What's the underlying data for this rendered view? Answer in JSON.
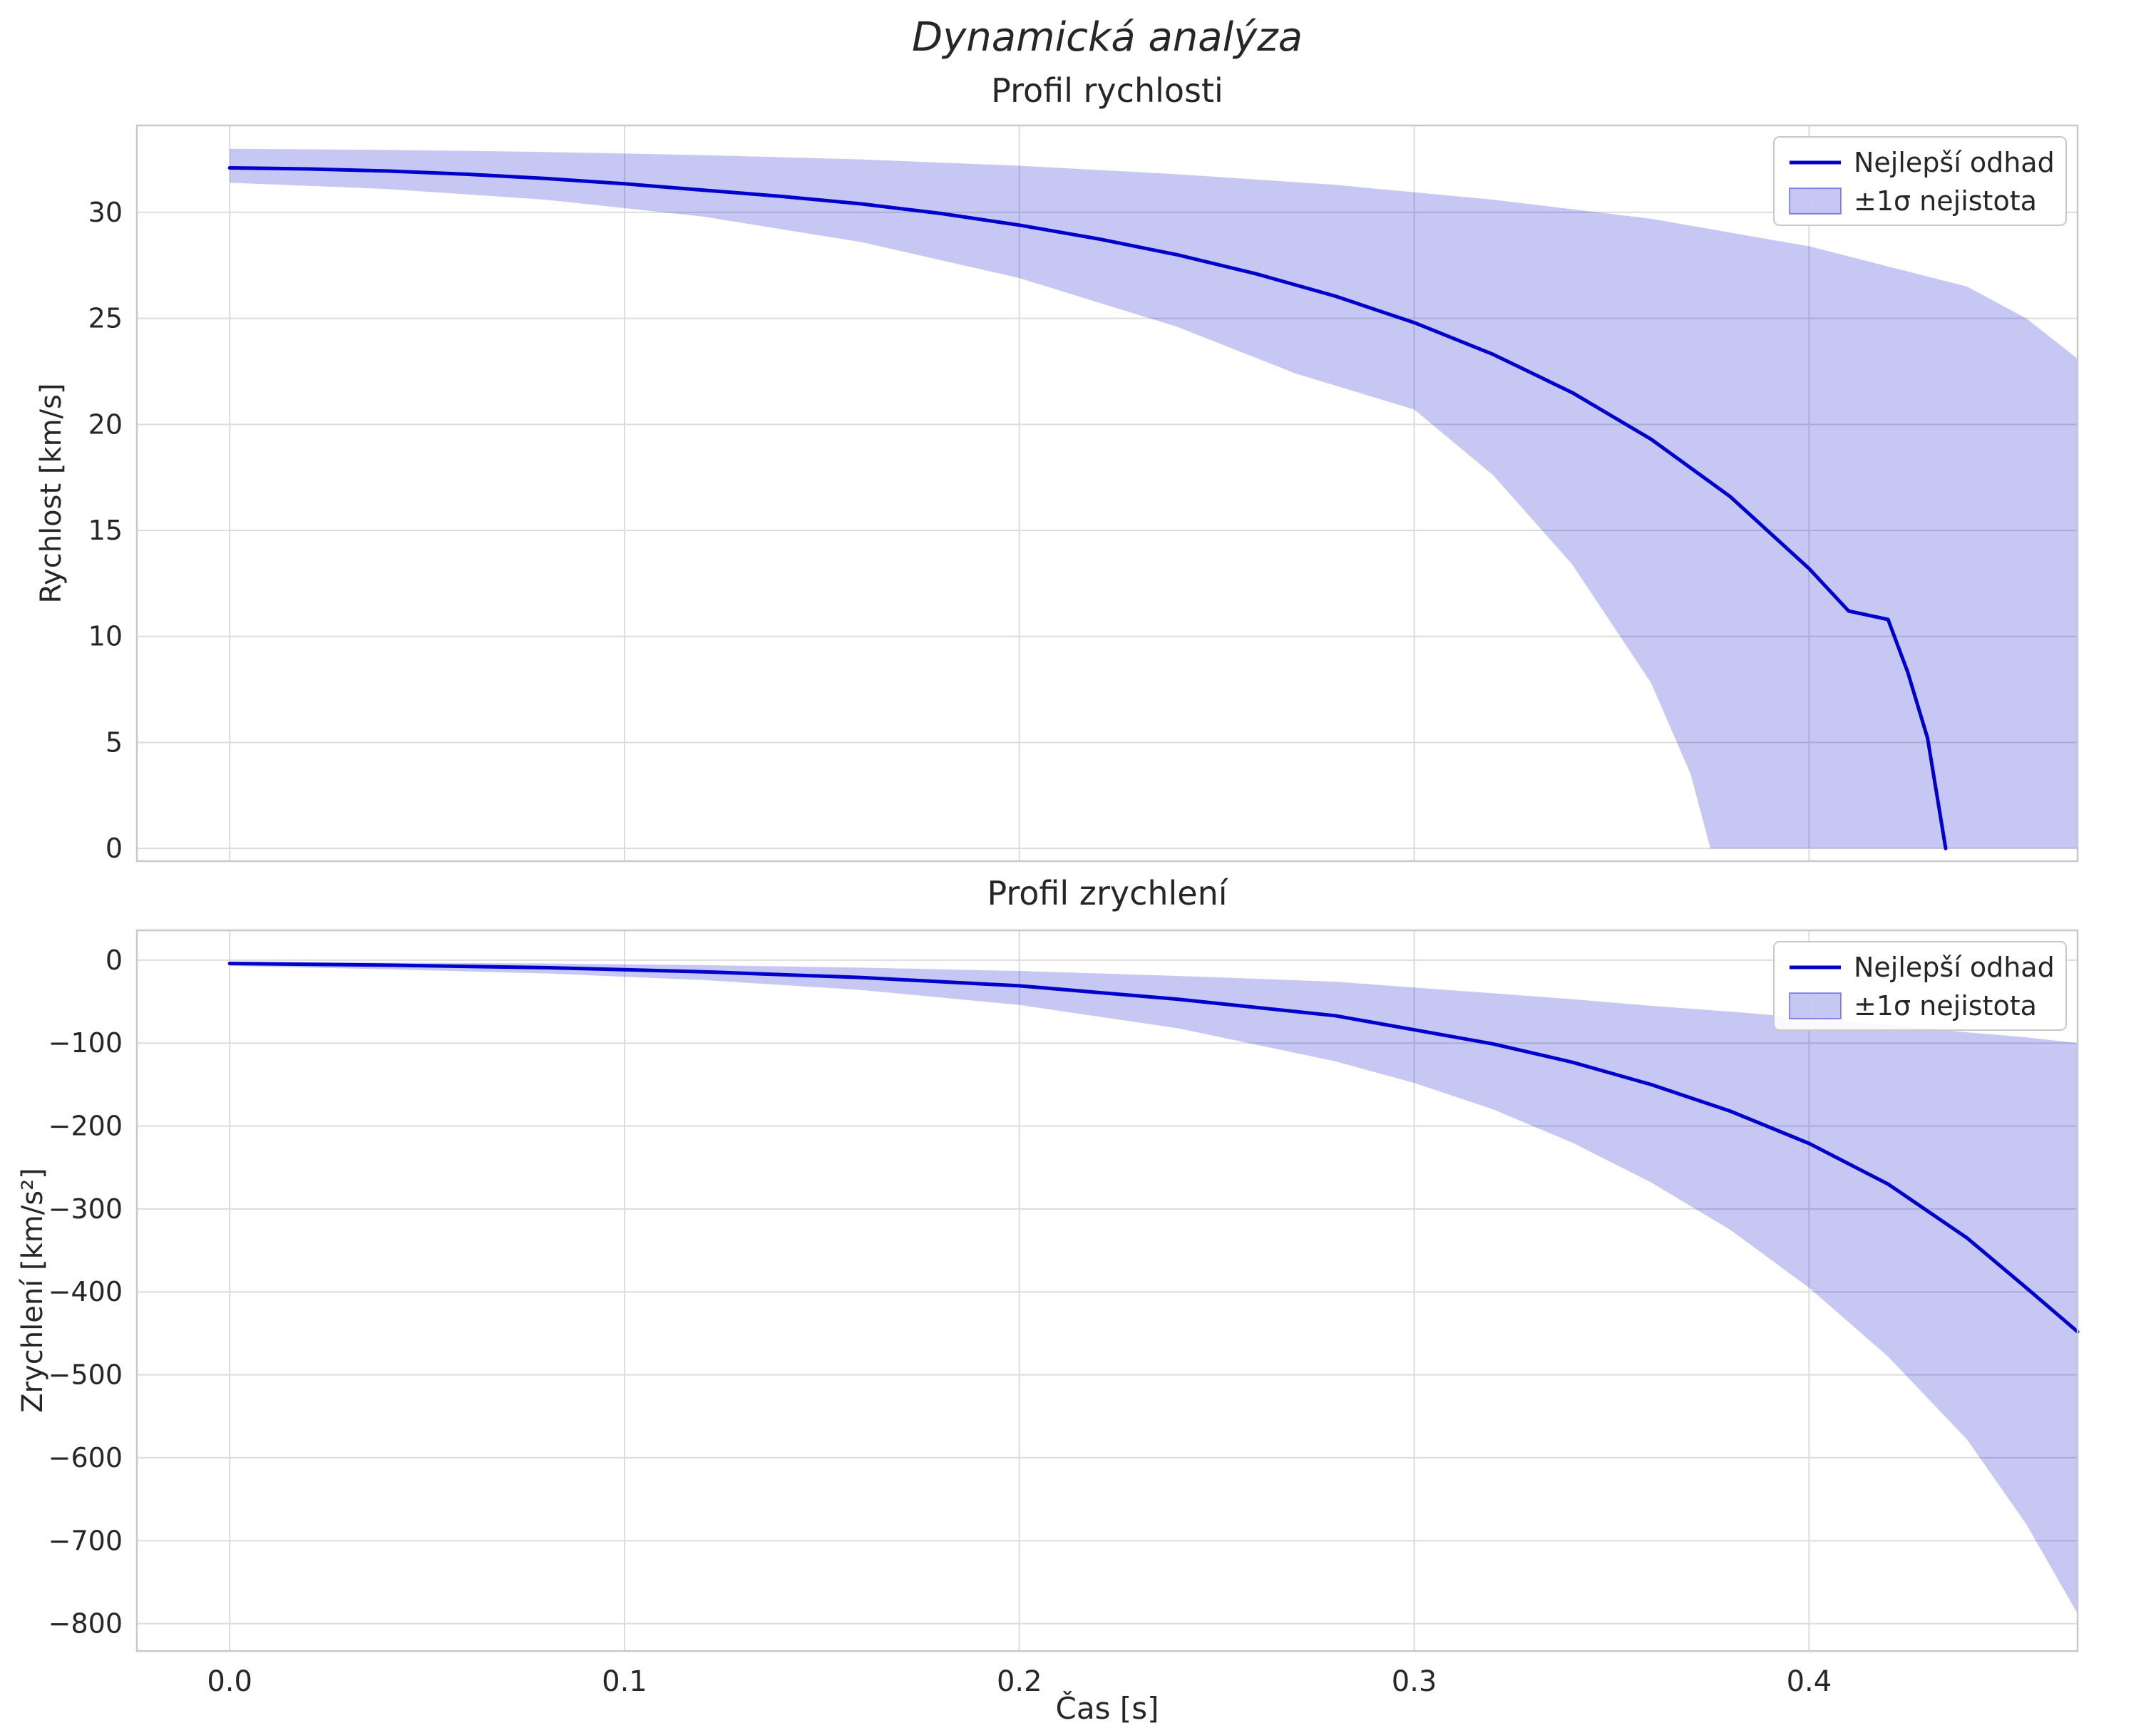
{
  "figure": {
    "suptitle": "Dynamická analýza"
  },
  "colors": {
    "line": "#0000cd",
    "band_fill": "rgba(0,0,205,0.22)",
    "band_edge": "rgba(0,0,205,0.38)",
    "grid": "#dcdcdc",
    "spine": "#c8c8c8",
    "text": "#262626",
    "background": "#ffffff"
  },
  "chart_data": [
    {
      "type": "line",
      "title": "Profil rychlosti",
      "ylabel": "Rychlost [km/s]",
      "xlabel": "",
      "xlim": [
        -0.0235,
        0.468
      ],
      "ylim": [
        -0.6,
        34.1
      ],
      "grid": true,
      "legend_position": "upper right",
      "xticks": {
        "values": [
          0,
          0.1,
          0.2,
          0.3,
          0.4
        ],
        "labels": [
          "0.0",
          "0.1",
          "0.2",
          "0.3",
          "0.4"
        ]
      },
      "yticks": {
        "values": [
          0,
          5,
          10,
          15,
          20,
          25,
          30
        ],
        "labels": [
          "0",
          "5",
          "10",
          "15",
          "20",
          "25",
          "30"
        ]
      },
      "legend": [
        {
          "type": "line",
          "label": "Nejlepší odhad"
        },
        {
          "type": "patch",
          "label": "±1σ nejistota"
        }
      ],
      "series": {
        "best": [
          [
            0.0,
            32.1
          ],
          [
            0.02,
            32.05
          ],
          [
            0.04,
            31.95
          ],
          [
            0.06,
            31.8
          ],
          [
            0.08,
            31.6
          ],
          [
            0.1,
            31.35
          ],
          [
            0.12,
            31.05
          ],
          [
            0.14,
            30.75
          ],
          [
            0.16,
            30.4
          ],
          [
            0.18,
            29.95
          ],
          [
            0.2,
            29.4
          ],
          [
            0.22,
            28.75
          ],
          [
            0.24,
            28.0
          ],
          [
            0.26,
            27.1
          ],
          [
            0.28,
            26.05
          ],
          [
            0.3,
            24.8
          ],
          [
            0.32,
            23.3
          ],
          [
            0.34,
            21.5
          ],
          [
            0.36,
            19.3
          ],
          [
            0.38,
            16.6
          ],
          [
            0.4,
            13.2
          ],
          [
            0.41,
            11.2
          ],
          [
            0.42,
            10.8
          ],
          [
            0.425,
            8.3
          ],
          [
            0.43,
            5.2
          ],
          [
            0.4346,
            0.0
          ]
        ],
        "upper": [
          [
            0.0,
            33.0
          ],
          [
            0.04,
            32.95
          ],
          [
            0.08,
            32.85
          ],
          [
            0.12,
            32.7
          ],
          [
            0.16,
            32.5
          ],
          [
            0.2,
            32.2
          ],
          [
            0.24,
            31.8
          ],
          [
            0.28,
            31.3
          ],
          [
            0.32,
            30.6
          ],
          [
            0.36,
            29.7
          ],
          [
            0.4,
            28.4
          ],
          [
            0.44,
            26.5
          ],
          [
            0.455,
            25.0
          ],
          [
            0.468,
            23.1
          ]
        ],
        "lower": [
          [
            0.0,
            31.4
          ],
          [
            0.04,
            31.1
          ],
          [
            0.08,
            30.6
          ],
          [
            0.12,
            29.8
          ],
          [
            0.16,
            28.6
          ],
          [
            0.2,
            26.9
          ],
          [
            0.24,
            24.6
          ],
          [
            0.27,
            22.4
          ],
          [
            0.3,
            20.7
          ],
          [
            0.32,
            17.6
          ],
          [
            0.34,
            13.4
          ],
          [
            0.36,
            7.8
          ],
          [
            0.37,
            3.5
          ],
          [
            0.375,
            0.0
          ],
          [
            0.4,
            0.0
          ],
          [
            0.44,
            0.0
          ],
          [
            0.468,
            0.0
          ]
        ]
      }
    },
    {
      "type": "line",
      "title": "Profil zrychlení",
      "ylabel": "Zrychlení [km/s²]",
      "xlabel": "Čas [s]",
      "xlim": [
        -0.0235,
        0.468
      ],
      "ylim": [
        -833,
        36
      ],
      "grid": true,
      "legend_position": "upper right",
      "xticks": {
        "values": [
          0,
          0.1,
          0.2,
          0.3,
          0.4
        ],
        "labels": [
          "0.0",
          "0.1",
          "0.2",
          "0.3",
          "0.4"
        ]
      },
      "yticks": {
        "values": [
          0,
          -100,
          -200,
          -300,
          -400,
          -500,
          -600,
          -700,
          -800
        ],
        "labels": [
          "0",
          "−100",
          "−200",
          "−300",
          "−400",
          "−500",
          "−600",
          "−700",
          "−800"
        ]
      },
      "legend": [
        {
          "type": "line",
          "label": "Nejlepší odhad"
        },
        {
          "type": "patch",
          "label": "±1σ nejistota"
        }
      ],
      "series": {
        "best": [
          [
            0.0,
            -4
          ],
          [
            0.04,
            -6
          ],
          [
            0.08,
            -9
          ],
          [
            0.12,
            -14
          ],
          [
            0.16,
            -21
          ],
          [
            0.2,
            -31
          ],
          [
            0.24,
            -47
          ],
          [
            0.28,
            -67
          ],
          [
            0.3,
            -84
          ],
          [
            0.32,
            -101
          ],
          [
            0.34,
            -123
          ],
          [
            0.36,
            -150
          ],
          [
            0.38,
            -182
          ],
          [
            0.4,
            -221
          ],
          [
            0.42,
            -270
          ],
          [
            0.44,
            -335
          ],
          [
            0.455,
            -395
          ],
          [
            0.468,
            -448
          ]
        ],
        "upper": [
          [
            0.0,
            -2
          ],
          [
            0.04,
            -3
          ],
          [
            0.08,
            -4
          ],
          [
            0.12,
            -6
          ],
          [
            0.16,
            -9
          ],
          [
            0.2,
            -13
          ],
          [
            0.24,
            -19
          ],
          [
            0.28,
            -26
          ],
          [
            0.3,
            -33
          ],
          [
            0.32,
            -40
          ],
          [
            0.34,
            -47
          ],
          [
            0.36,
            -55
          ],
          [
            0.38,
            -62
          ],
          [
            0.4,
            -70
          ],
          [
            0.42,
            -78
          ],
          [
            0.44,
            -87
          ],
          [
            0.455,
            -93
          ],
          [
            0.468,
            -100
          ]
        ],
        "lower": [
          [
            0.0,
            -7
          ],
          [
            0.04,
            -11
          ],
          [
            0.08,
            -16
          ],
          [
            0.12,
            -24
          ],
          [
            0.16,
            -36
          ],
          [
            0.2,
            -54
          ],
          [
            0.24,
            -82
          ],
          [
            0.28,
            -122
          ],
          [
            0.3,
            -148
          ],
          [
            0.32,
            -180
          ],
          [
            0.34,
            -220
          ],
          [
            0.36,
            -268
          ],
          [
            0.38,
            -325
          ],
          [
            0.4,
            -395
          ],
          [
            0.42,
            -478
          ],
          [
            0.44,
            -578
          ],
          [
            0.455,
            -680
          ],
          [
            0.468,
            -788
          ]
        ]
      }
    }
  ]
}
